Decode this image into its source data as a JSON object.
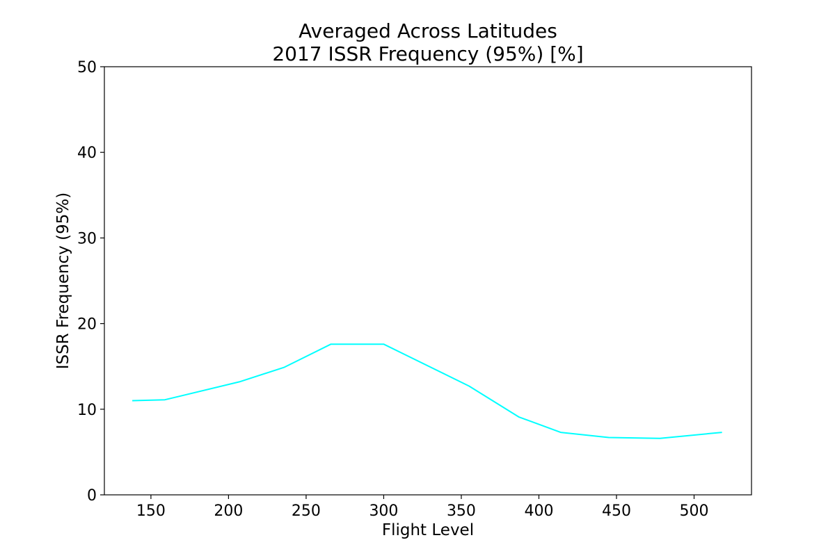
{
  "chart_data": {
    "type": "line",
    "title": "Averaged Across Latitudes",
    "subtitle": "2017 ISSR Frequency (95%) [%]",
    "xlabel": "Flight Level",
    "ylabel": "ISSR Frequency (95%)",
    "xlim": [
      120,
      537
    ],
    "ylim": [
      0,
      50
    ],
    "xticks": [
      150,
      200,
      250,
      300,
      350,
      400,
      450,
      500
    ],
    "yticks": [
      0,
      10,
      20,
      30,
      40,
      50
    ],
    "grid": false,
    "series": [
      {
        "color": "#00ffff",
        "x": [
          138,
          159,
          207,
          236,
          266,
          300,
          355,
          387,
          414,
          445,
          478,
          518
        ],
        "y": [
          11.0,
          11.1,
          13.2,
          14.9,
          17.6,
          17.6,
          12.7,
          9.1,
          7.3,
          6.7,
          6.6,
          7.3
        ]
      }
    ]
  }
}
